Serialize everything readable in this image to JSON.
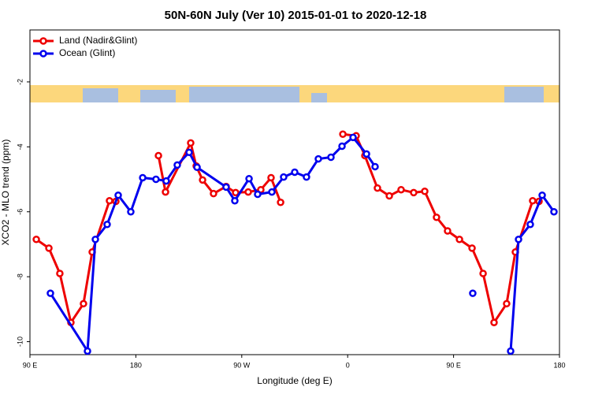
{
  "chart_data": {
    "type": "line",
    "title": "50N-60N July (Ver 10)   2015-01-01 to 2020-12-18",
    "x_label": "Longitude (deg E)",
    "y_label": "XCO2 - MLO trend (ppm)",
    "xlim": [
      90,
      540
    ],
    "ylim": [
      -10.4,
      -0.4
    ],
    "xticks": [
      {
        "value": 90,
        "label": "90 E"
      },
      180,
      {
        "value": 270,
        "label": "90 W"
      },
      {
        "value": 360,
        "label": "0"
      },
      {
        "value": 450,
        "label": "90 E"
      },
      {
        "value": 540,
        "label": "180"
      }
    ],
    "yticks": [
      -2,
      -4,
      -6,
      -8,
      -10
    ],
    "legend": "top-left",
    "series": [
      {
        "name": "Land (Nadir&Glint)",
        "color": "#ee0000",
        "x": [
          95.4,
          106.1,
          115.4,
          124.8,
          135.5,
          142.9,
          157.6,
          163.0,
          181.0,
          199.2,
          205.2,
          226.6,
          231.3,
          236.7,
          246.0,
          256.7,
          264.8,
          275.5,
          286.2,
          294.9,
          303.0,
          330.0,
          355.9,
          367.2,
          374.6,
          385.3,
          395.4,
          405.4,
          416.1,
          425.5,
          435.5,
          444.9,
          455.0,
          465.7,
          475.1,
          484.4,
          495.1,
          502.5,
          517.2,
          522.6
        ],
        "values": [
          -6.85,
          -7.12,
          -7.9,
          -9.41,
          -8.83,
          -7.24,
          -5.66,
          -5.68,
          null,
          -4.27,
          -5.39,
          -3.88,
          -4.59,
          -5.02,
          -5.44,
          -5.22,
          -5.41,
          -5.39,
          -5.32,
          -4.95,
          -5.71,
          null,
          -3.61,
          -3.66,
          -4.27,
          -5.27,
          -5.51,
          -5.32,
          -5.41,
          -5.37,
          -6.17,
          -6.59,
          -6.85,
          -7.12,
          -7.9,
          -9.41,
          -8.83,
          -7.24,
          -5.66,
          -5.68
        ]
      },
      {
        "name": "Ocean (Glint)",
        "color": "#0000ee",
        "x": [
          107.4,
          138.9,
          145.6,
          155.6,
          165.0,
          175.7,
          185.8,
          197.1,
          205.8,
          215.2,
          225.3,
          232.0,
          256.7,
          264.1,
          276.2,
          283.5,
          295.6,
          305.6,
          315.0,
          325.0,
          335.1,
          345.8,
          355.2,
          364.6,
          376.0,
          383.3,
          425.0,
          466.3,
          482.0,
          498.5,
          505.2,
          515.2,
          525.3,
          535.3
        ],
        "values": [
          -8.51,
          -10.29,
          -6.85,
          -6.39,
          -5.49,
          -6.0,
          -4.95,
          -5.0,
          -5.05,
          -4.56,
          -4.17,
          -4.63,
          -5.24,
          -5.66,
          -4.98,
          -5.46,
          -5.39,
          -4.93,
          -4.78,
          -4.93,
          -4.37,
          -4.32,
          -3.98,
          -3.71,
          -4.22,
          -4.61,
          null,
          -8.51,
          null,
          -10.29,
          -6.85,
          -6.39,
          -5.49,
          -6.0
        ]
      }
    ]
  }
}
